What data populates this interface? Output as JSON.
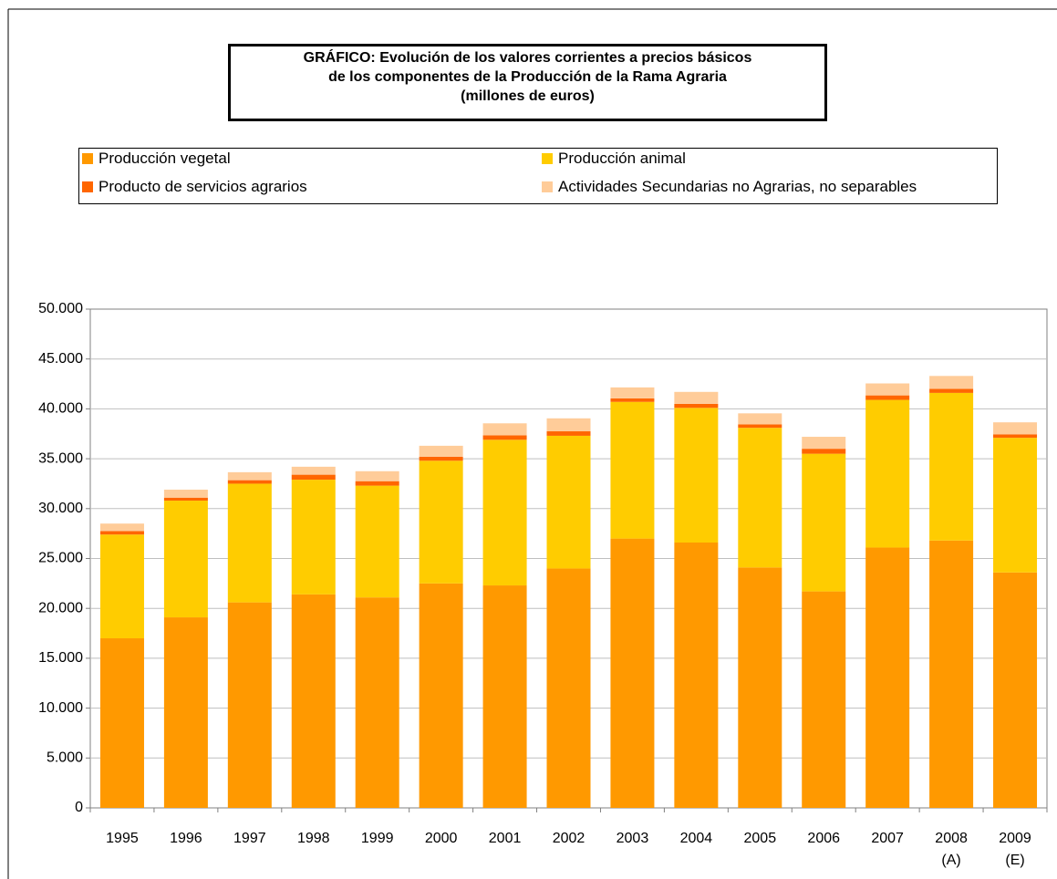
{
  "chart_data": {
    "type": "stacked_bar",
    "title": "GRÁFICO: Evolución de los valores corrientes a precios básicos\nde los componentes de la Producción de la Rama Agraria\n(millones de euros)",
    "categories": [
      "1995",
      "1996",
      "1997",
      "1998",
      "1999",
      "2000",
      "2001",
      "2002",
      "2003",
      "2004",
      "2005",
      "2006",
      "2007",
      "2008\n(A)",
      "2009\n(E)"
    ],
    "series": [
      {
        "name": "Producción vegetal",
        "color": "#ff9900",
        "values": [
          17000,
          19100,
          20600,
          21400,
          21100,
          22500,
          22300,
          24000,
          27000,
          26600,
          24100,
          21700,
          26100,
          26800,
          23600
        ]
      },
      {
        "name": "Producción animal",
        "color": "#ffcc00",
        "values": [
          10400,
          11700,
          11900,
          11500,
          11200,
          12300,
          14600,
          13300,
          13700,
          13500,
          14000,
          13800,
          14800,
          14800,
          13500
        ]
      },
      {
        "name": "Producto de servicios agrarios",
        "color": "#ff6600",
        "values": [
          350,
          300,
          350,
          500,
          450,
          400,
          450,
          450,
          350,
          400,
          350,
          500,
          450,
          400,
          350
        ]
      },
      {
        "name": "Actividades Secundarias no Agrarias, no separables",
        "color": "#ffcc99",
        "values": [
          750,
          800,
          800,
          800,
          1000,
          1100,
          1200,
          1300,
          1100,
          1200,
          1100,
          1200,
          1200,
          1300,
          1200
        ]
      }
    ],
    "ylim": [
      0,
      50000
    ],
    "yticks": [
      0,
      {
        "value": 5000,
        "label": "5.000"
      },
      {
        "value": 10000,
        "label": "10.000"
      },
      {
        "value": 15000,
        "label": "15.000"
      },
      {
        "value": 20000,
        "label": "20.000"
      },
      {
        "value": 25000,
        "label": "25.000"
      },
      {
        "value": 30000,
        "label": "30.000"
      },
      {
        "value": 35000,
        "label": "35.000"
      },
      {
        "value": 40000,
        "label": "40.000"
      },
      {
        "value": 45000,
        "label": "45.000"
      },
      {
        "value": 50000,
        "label": "50.000"
      }
    ],
    "grid": true
  }
}
